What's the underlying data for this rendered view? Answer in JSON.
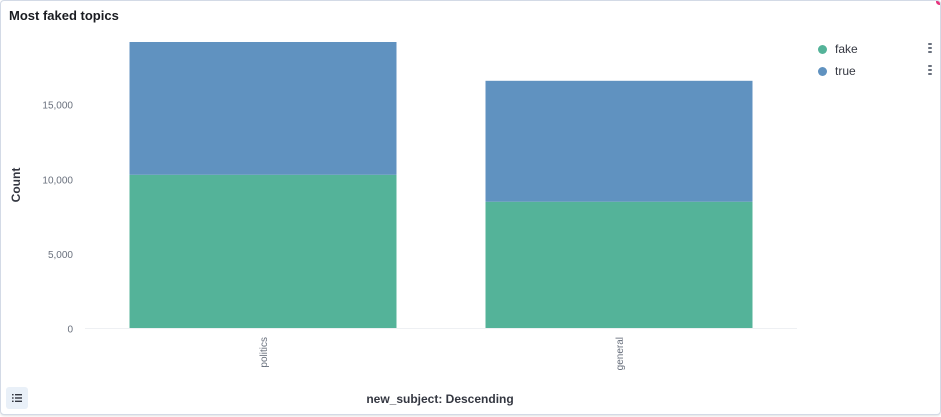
{
  "panel": {
    "title": "Most faked topics"
  },
  "legend": {
    "items": [
      {
        "label": "fake",
        "color": "#54b399"
      },
      {
        "label": "true",
        "color": "#6092c0"
      }
    ]
  },
  "icons": {
    "legend_toggle": "list-icon",
    "legend_menu": "vertical-ellipsis-icon"
  },
  "chart_data": {
    "type": "bar",
    "stacked": true,
    "title": "Most faked topics",
    "xlabel": "new_subject: Descending",
    "ylabel": "Count",
    "categories": [
      "politics",
      "general"
    ],
    "series": [
      {
        "name": "fake",
        "color": "#54b399",
        "values": [
          10300,
          8500
        ]
      },
      {
        "name": "true",
        "color": "#6092c0",
        "values": [
          8900,
          8100
        ]
      }
    ],
    "ylim": [
      0,
      19200
    ],
    "yticks": [
      0,
      5000,
      10000,
      15000
    ],
    "ytick_labels": [
      "0",
      "5,000",
      "10,000",
      "15,000"
    ],
    "grid": false,
    "legend_position": "right"
  }
}
